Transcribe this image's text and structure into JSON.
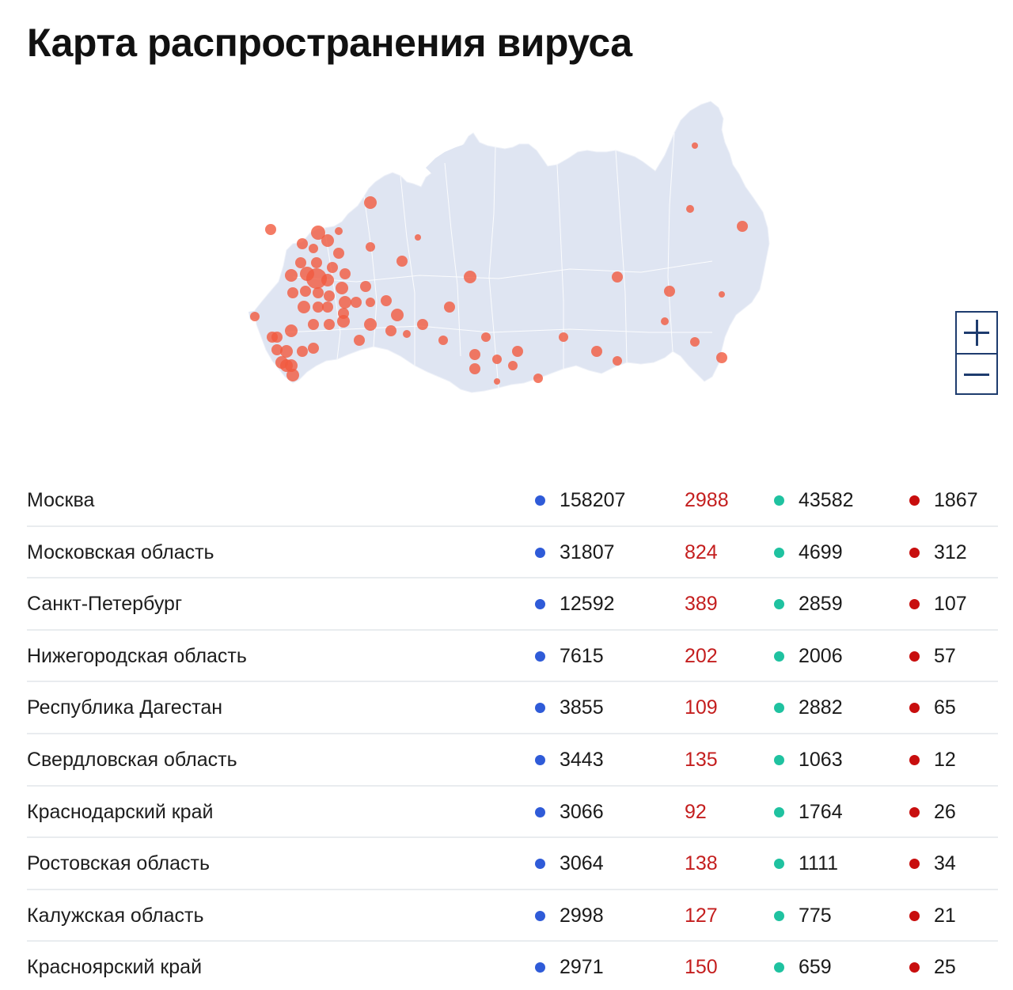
{
  "title": "Карта распространения вируса",
  "colors": {
    "cases_dot": "#2f5bd8",
    "new_text": "#c41e1e",
    "recovered_dot": "#1fc2a0",
    "deaths_dot": "#c80e0e",
    "map_fill": "#dfe5f2",
    "marker": "#f15a3e",
    "zoom_border": "#1e3c6e"
  },
  "map": {
    "zoom_in_icon": "plus-icon",
    "zoom_out_icon": "minus-icon"
  },
  "regions": [
    {
      "name": "Москва",
      "cases": "158207",
      "new": "2988",
      "recovered": "43582",
      "deaths": "1867"
    },
    {
      "name": "Московская область",
      "cases": "31807",
      "new": "824",
      "recovered": "4699",
      "deaths": "312"
    },
    {
      "name": "Санкт-Петербург",
      "cases": "12592",
      "new": "389",
      "recovered": "2859",
      "deaths": "107"
    },
    {
      "name": "Нижегородская область",
      "cases": "7615",
      "new": "202",
      "recovered": "2006",
      "deaths": "57"
    },
    {
      "name": "Республика Дагестан",
      "cases": "3855",
      "new": "109",
      "recovered": "2882",
      "deaths": "65"
    },
    {
      "name": "Свердловская область",
      "cases": "3443",
      "new": "135",
      "recovered": "1063",
      "deaths": "12"
    },
    {
      "name": "Краснодарский край",
      "cases": "3066",
      "new": "92",
      "recovered": "1764",
      "deaths": "26"
    },
    {
      "name": "Ростовская область",
      "cases": "3064",
      "new": "138",
      "recovered": "1111",
      "deaths": "34"
    },
    {
      "name": "Калужская область",
      "cases": "2998",
      "new": "127",
      "recovered": "775",
      "deaths": "21"
    },
    {
      "name": "Красноярский край",
      "cases": "2971",
      "new": "150",
      "recovered": "659",
      "deaths": "25"
    }
  ]
}
